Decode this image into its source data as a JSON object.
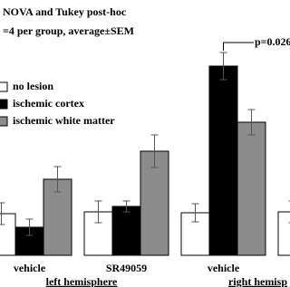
{
  "chart_data": {
    "type": "bar",
    "title_lines": [
      "NOVA and Tukey post-hoc",
      "=4 per group, average±SEM"
    ],
    "categories": [
      "vehicle",
      "SR49059",
      "vehicle",
      null
    ],
    "group_labels": [
      "left hemisphere",
      "right hemisp"
    ],
    "series": [
      {
        "name": "no lesion",
        "color": "#ffffff",
        "values": [
          46,
          48,
          47,
          48
        ],
        "errors": [
          12,
          12,
          10,
          12
        ]
      },
      {
        "name": "ischemic cortex",
        "color": "#000000",
        "values": [
          31,
          54,
          209,
          null
        ],
        "errors": [
          9,
          6,
          15,
          null
        ]
      },
      {
        "name": "ischemic white matter",
        "color": "#8c8c8c",
        "values": [
          84,
          115,
          147,
          null
        ],
        "errors": [
          14,
          18,
          14,
          null
        ]
      }
    ],
    "annotation": "p=0.026",
    "ylim": [
      0,
      282
    ]
  }
}
